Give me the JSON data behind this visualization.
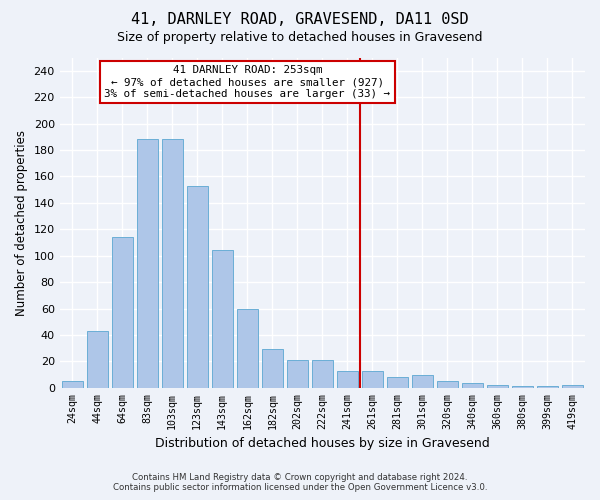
{
  "title1": "41, DARNLEY ROAD, GRAVESEND, DA11 0SD",
  "title2": "Size of property relative to detached houses in Gravesend",
  "xlabel": "Distribution of detached houses by size in Gravesend",
  "ylabel": "Number of detached properties",
  "bin_labels": [
    "24sqm",
    "44sqm",
    "64sqm",
    "83sqm",
    "103sqm",
    "123sqm",
    "143sqm",
    "162sqm",
    "182sqm",
    "202sqm",
    "222sqm",
    "241sqm",
    "261sqm",
    "281sqm",
    "301sqm",
    "320sqm",
    "340sqm",
    "360sqm",
    "380sqm",
    "399sqm",
    "419sqm"
  ],
  "bar_values": [
    5,
    43,
    114,
    188,
    188,
    153,
    104,
    60,
    29,
    21,
    21,
    13,
    13,
    8,
    10,
    5,
    4,
    2,
    1,
    1,
    2
  ],
  "bar_color": "#aec6e8",
  "bar_edge_color": "#6aaed6",
  "property_label": "41 DARNLEY ROAD: 253sqm",
  "annotation_line1": "← 97% of detached houses are smaller (927)",
  "annotation_line2": "3% of semi-detached houses are larger (33) →",
  "vline_color": "#cc0000",
  "annotation_box_color": "#cc0000",
  "background_color": "#eef2f9",
  "grid_color": "#ffffff",
  "yticks": [
    0,
    20,
    40,
    60,
    80,
    100,
    120,
    140,
    160,
    180,
    200,
    220,
    240
  ],
  "footer1": "Contains HM Land Registry data © Crown copyright and database right 2024.",
  "footer2": "Contains public sector information licensed under the Open Government Licence v3.0."
}
